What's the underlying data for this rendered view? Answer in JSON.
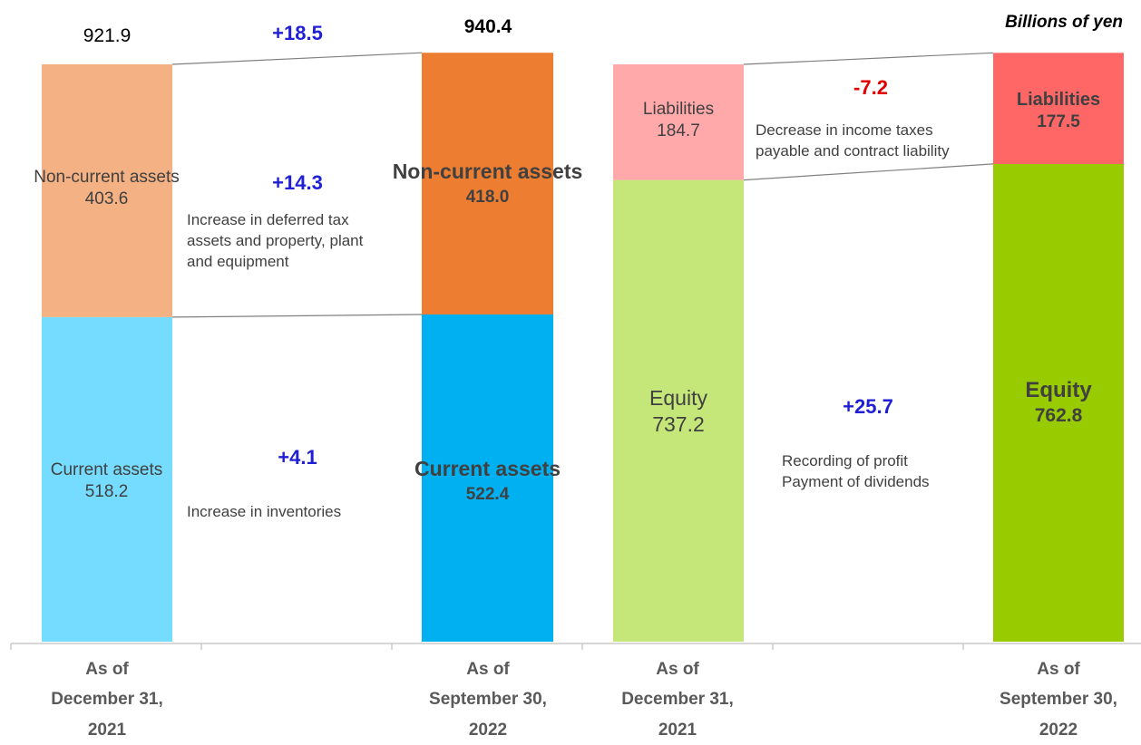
{
  "unit_label": "Billions of yen",
  "colors": {
    "prev_current": "#75dbff",
    "prev_noncurrent": "#f4b183",
    "curr_current": "#00b0f0",
    "curr_noncurrent": "#ed7d31",
    "prev_liab": "#ffa9ab",
    "prev_equity": "#c5e77a",
    "curr_liab": "#ff6666",
    "curr_equity": "#99cc00",
    "positive": "#1f1fd6",
    "negative": "#e00000"
  },
  "chart_data": {
    "type": "bar",
    "stacked": true,
    "unit": "Billions of yen",
    "categories": [
      "As of\nDecember 31,\n2021",
      "As of\nSeptember 30,\n2022",
      "As of\nDecember 31,\n2021",
      "As of\nSeptember 30,\n2022"
    ],
    "assets": {
      "total_prev": "921.9",
      "total_curr": "940.4",
      "total_change": "+18.5",
      "prev": [
        {
          "name": "Current assets",
          "value": 518.2,
          "label": "518.2"
        },
        {
          "name": "Non-current assets",
          "value": 403.6,
          "label": "403.6"
        }
      ],
      "curr": [
        {
          "name": "Current assets",
          "value": 522.4,
          "label": "522.4"
        },
        {
          "name": "Non-current assets",
          "value": 418.0,
          "label": "418.0"
        }
      ],
      "changes": [
        {
          "delta": "+4.1",
          "note": [
            "Increase in inventories"
          ]
        },
        {
          "delta": "+14.3",
          "note": [
            "Increase in deferred tax",
            "assets and property, plant",
            "and equipment"
          ]
        }
      ]
    },
    "liabilities_equity": {
      "prev": [
        {
          "name": "Equity",
          "value": 737.2,
          "label": "737.2"
        },
        {
          "name": "Liabilities",
          "value": 184.7,
          "label": "184.7"
        }
      ],
      "curr": [
        {
          "name": "Equity",
          "value": 762.8,
          "label": "762.8"
        },
        {
          "name": "Liabilities",
          "value": 177.5,
          "label": "177.5"
        }
      ],
      "changes": [
        {
          "delta": "+25.7",
          "note": [
            "Recording of profit",
            "Payment of dividends"
          ]
        },
        {
          "delta": "-7.2",
          "note": [
            "Decrease in income taxes",
            "payable  and contract liability"
          ]
        }
      ]
    }
  }
}
